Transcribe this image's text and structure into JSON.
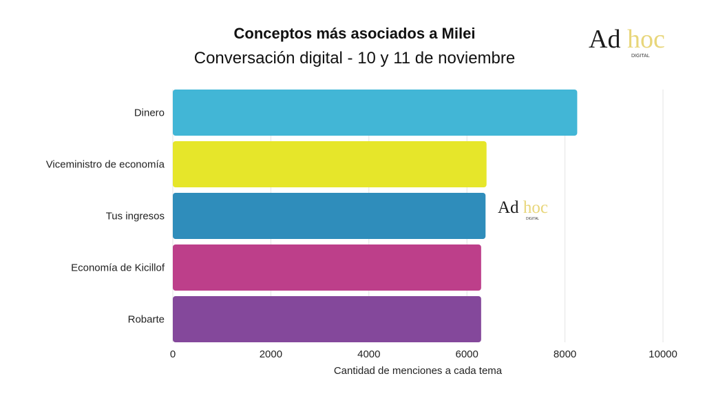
{
  "chart_data": {
    "type": "bar",
    "orientation": "horizontal",
    "title": "Conceptos más asociados a Milei",
    "subtitle": "Conversación digital - 10 y 11 de noviembre",
    "categories": [
      "Dinero",
      "Viceministro de economía",
      "Tus ingresos",
      "Economía de Kicillof",
      "Robarte"
    ],
    "values": [
      8250,
      6400,
      6380,
      6290,
      6290
    ],
    "colors": [
      "#42b6d6",
      "#e6e62a",
      "#2f8dbb",
      "#bd3f8a",
      "#84489b"
    ],
    "xlabel": "Cantidad de menciones a cada tema",
    "ylabel": "",
    "xlim": [
      0,
      10000
    ],
    "xticks": [
      0,
      2000,
      4000,
      6000,
      8000,
      10000
    ],
    "grid": true,
    "legend": "none"
  },
  "logo": {
    "word1": "Ad",
    "word2": "hoc",
    "tag": "DIGITAL"
  }
}
